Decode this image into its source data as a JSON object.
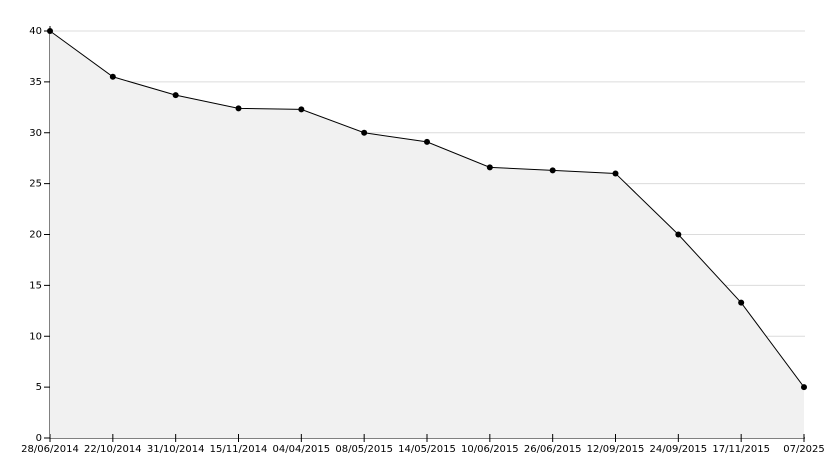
{
  "chart_data": {
    "type": "area",
    "categories": [
      "28/06/2014",
      "22/10/2014",
      "31/10/2014",
      "15/11/2014",
      "04/04/2015",
      "08/05/2015",
      "14/05/2015",
      "10/06/2015",
      "26/06/2015",
      "12/09/2015",
      "24/09/2015",
      "17/11/2015",
      "07/2025"
    ],
    "values": [
      40,
      35.5,
      33.7,
      32.4,
      32.3,
      30,
      29.1,
      26.6,
      26.3,
      26,
      20,
      13.3,
      5
    ],
    "color": "#000000",
    "fill": "#f1f1f1",
    "ylim": [
      0,
      40
    ],
    "yticks": [
      0,
      5,
      10,
      15,
      20,
      25,
      30,
      35,
      40
    ],
    "grid": true
  }
}
